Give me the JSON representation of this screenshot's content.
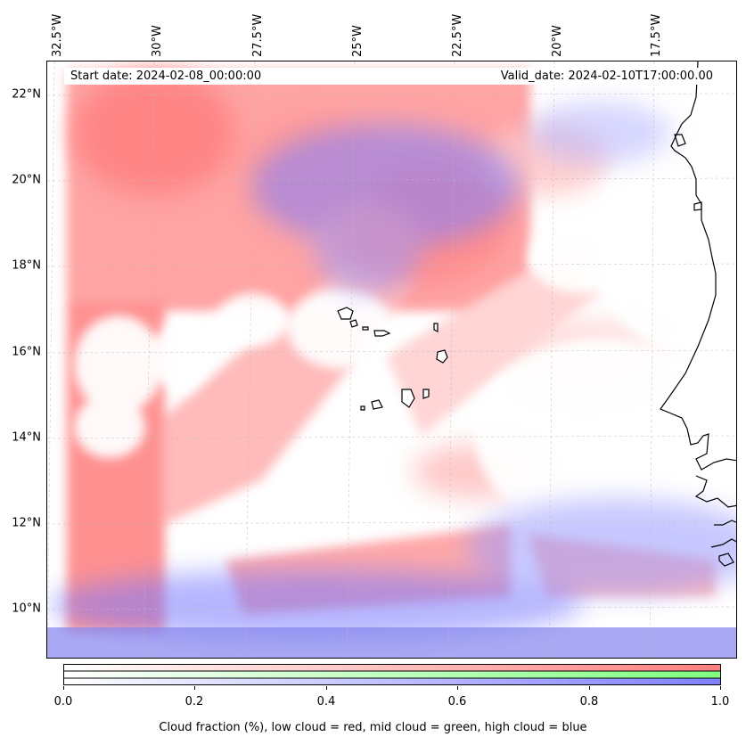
{
  "header": {
    "start_date": "Start date: 2024-02-08_00:00:00",
    "valid_date": "Valid_date: 2024-02-10T17:00:00.00"
  },
  "axes": {
    "longitude_labels": [
      "32.5°W",
      "30°W",
      "27.5°W",
      "25°W",
      "22.5°W",
      "20°W",
      "17.5°W"
    ],
    "latitude_labels": [
      "22°N",
      "20°N",
      "18°N",
      "16°N",
      "14°N",
      "12°N",
      "10°N"
    ],
    "gridlines": true
  },
  "colorbar": {
    "tick_labels": [
      "0.0",
      "0.2",
      "0.4",
      "0.6",
      "0.8",
      "1.0"
    ],
    "range": [
      0.0,
      1.0
    ],
    "label": "Cloud fraction (%), low cloud = red, mid cloud = green, high cloud = blue",
    "colors": {
      "low": "#ff7f7f",
      "mid": "#7fff7f",
      "high": "#7f7fff"
    }
  },
  "map": {
    "region": "Cape Verde and West African coast",
    "layers": [
      "low cloud",
      "mid cloud",
      "high cloud",
      "coastlines"
    ]
  }
}
